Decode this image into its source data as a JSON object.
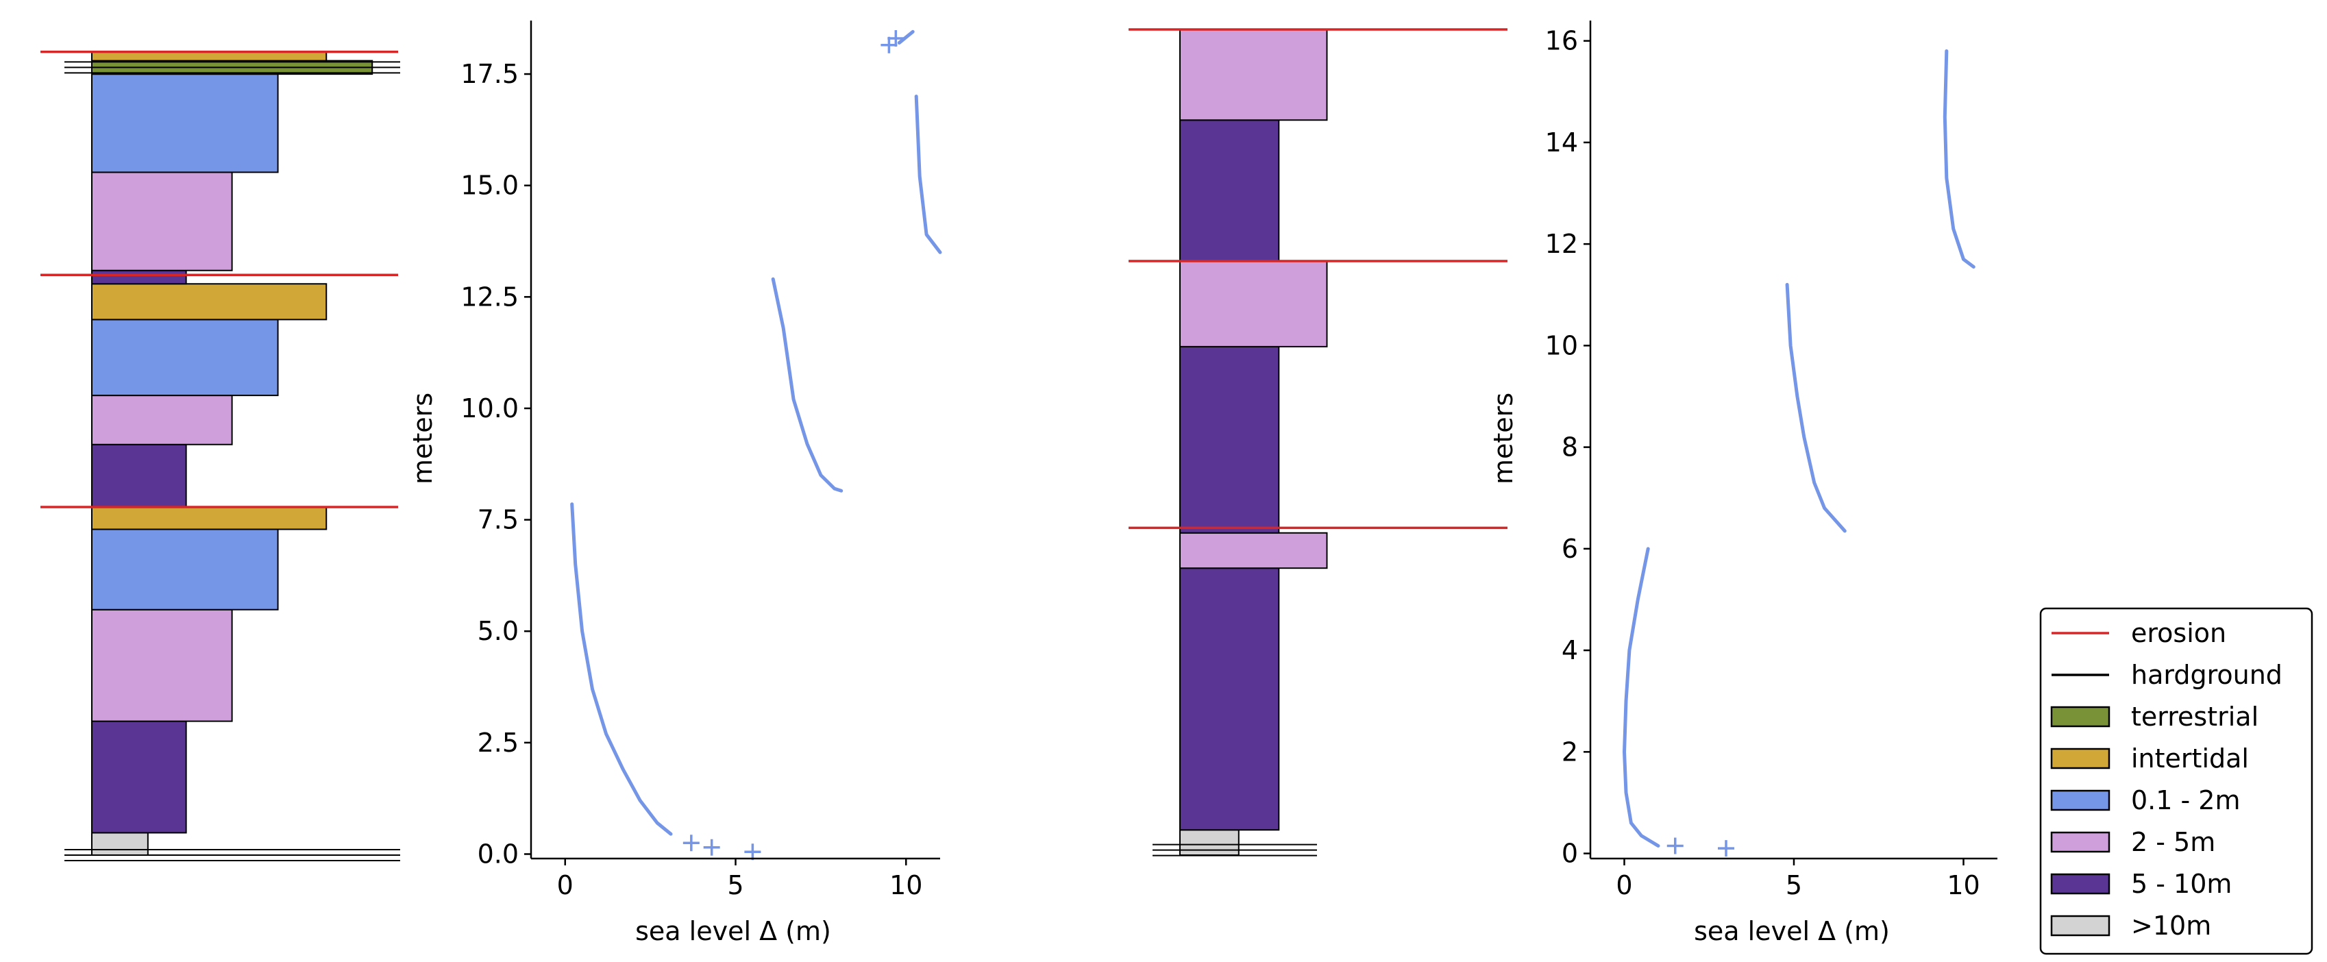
{
  "colors": {
    "erosion": "#d62728",
    "hardground": "#000000",
    "terrestrial": "#7a9237",
    "intertidal": "#d1a838",
    "0.1 - 2m": "#7595e6",
    "2 - 5m": "#cf9fdb",
    "5 - 10m": "#5b3594",
    ">10m": "#d3d3d3",
    "curve": "#7595e6"
  },
  "legend": {
    "items": [
      {
        "label": "erosion",
        "kind": "line",
        "color": "#d62728"
      },
      {
        "label": "hardground",
        "kind": "line",
        "color": "#000000"
      },
      {
        "label": "terrestrial",
        "kind": "patch",
        "color": "#7a9237"
      },
      {
        "label": "intertidal",
        "kind": "patch",
        "color": "#d1a838"
      },
      {
        "label": "0.1 - 2m",
        "kind": "patch",
        "color": "#7595e6"
      },
      {
        "label": "2 - 5m",
        "kind": "patch",
        "color": "#cf9fdb"
      },
      {
        "label": "5 - 10m",
        "kind": "patch",
        "color": "#5b3594"
      },
      {
        "label": ">10m",
        "kind": "patch",
        "color": "#d3d3d3"
      }
    ]
  },
  "chart_data": [
    {
      "type": "bar",
      "role": "stratigraphic-column-1",
      "units": "meters",
      "ylim": [
        0,
        18.5
      ],
      "beds": [
        {
          "bottom": 0.0,
          "top": 0.5,
          "facies": ">10m"
        },
        {
          "bottom": 0.5,
          "top": 3.0,
          "facies": "5 - 10m"
        },
        {
          "bottom": 3.0,
          "top": 5.5,
          "facies": "2 - 5m"
        },
        {
          "bottom": 5.5,
          "top": 7.3,
          "facies": "0.1 - 2m"
        },
        {
          "bottom": 7.3,
          "top": 7.8,
          "facies": "intertidal"
        },
        {
          "bottom": 7.8,
          "top": 9.2,
          "facies": "5 - 10m"
        },
        {
          "bottom": 9.2,
          "top": 10.3,
          "facies": "2 - 5m"
        },
        {
          "bottom": 10.3,
          "top": 12.0,
          "facies": "0.1 - 2m"
        },
        {
          "bottom": 12.0,
          "top": 12.8,
          "facies": "intertidal"
        },
        {
          "bottom": 12.8,
          "top": 13.1,
          "facies": "5 - 10m"
        },
        {
          "bottom": 13.1,
          "top": 15.3,
          "facies": "2 - 5m"
        },
        {
          "bottom": 15.3,
          "top": 17.5,
          "facies": "0.1 - 2m"
        },
        {
          "bottom": 17.5,
          "top": 17.8,
          "facies": "terrestrial"
        },
        {
          "bottom": 17.8,
          "top": 18.0,
          "facies": "intertidal"
        }
      ],
      "erosion_surfaces": [
        7.8,
        13.0,
        18.0
      ],
      "hardgrounds": [
        0.0,
        17.65
      ]
    },
    {
      "type": "line",
      "role": "sea-level-1",
      "xlabel": "sea level Δ (m)",
      "ylabel": "meters",
      "xlim": [
        -1,
        11
      ],
      "ylim": [
        -0.1,
        18.7
      ],
      "xticks": [
        0,
        5,
        10
      ],
      "yticks": [
        0.0,
        2.5,
        5.0,
        7.5,
        10.0,
        12.5,
        15.0,
        17.5
      ],
      "ytick_labels": [
        "0.0",
        "2.5",
        "5.0",
        "7.5",
        "10.0",
        "12.5",
        "15.0",
        "17.5"
      ],
      "series": [
        {
          "points": [
            [
              0.2,
              7.85
            ],
            [
              0.3,
              6.5
            ],
            [
              0.5,
              5.0
            ],
            [
              0.8,
              3.7
            ],
            [
              1.2,
              2.7
            ],
            [
              1.7,
              1.9
            ],
            [
              2.2,
              1.2
            ],
            [
              2.7,
              0.7
            ],
            [
              3.1,
              0.45
            ]
          ]
        },
        {
          "points": [
            [
              6.1,
              12.9
            ],
            [
              6.4,
              11.8
            ],
            [
              6.7,
              10.2
            ],
            [
              7.1,
              9.2
            ],
            [
              7.5,
              8.5
            ],
            [
              7.9,
              8.2
            ],
            [
              8.1,
              8.15
            ]
          ]
        },
        {
          "points": [
            [
              10.3,
              17.0
            ],
            [
              10.4,
              15.2
            ],
            [
              10.6,
              13.9
            ],
            [
              11.0,
              13.5
            ]
          ]
        },
        {
          "points": [
            [
              9.8,
              18.2
            ],
            [
              10.2,
              18.45
            ]
          ]
        }
      ],
      "markers": [
        [
          3.7,
          0.25
        ],
        [
          4.3,
          0.15
        ],
        [
          5.5,
          0.05
        ],
        [
          9.5,
          18.15
        ],
        [
          9.7,
          18.3
        ]
      ]
    },
    {
      "type": "bar",
      "role": "stratigraphic-column-2",
      "units": "meters",
      "ylim": [
        0,
        16.4
      ],
      "beds": [
        {
          "bottom": 0.0,
          "top": 0.5,
          "facies": ">10m"
        },
        {
          "bottom": 0.5,
          "top": 5.7,
          "facies": "5 - 10m"
        },
        {
          "bottom": 5.7,
          "top": 6.4,
          "facies": "2 - 5m"
        },
        {
          "bottom": 6.4,
          "top": 10.1,
          "facies": "5 - 10m"
        },
        {
          "bottom": 10.1,
          "top": 11.8,
          "facies": "2 - 5m"
        },
        {
          "bottom": 11.8,
          "top": 14.6,
          "facies": "5 - 10m"
        },
        {
          "bottom": 14.6,
          "top": 16.4,
          "facies": "2 - 5m"
        }
      ],
      "erosion_surfaces": [
        6.5,
        11.8,
        16.4
      ],
      "hardgrounds": [
        0.1
      ]
    },
    {
      "type": "line",
      "role": "sea-level-2",
      "xlabel": "sea level Δ (m)",
      "ylabel": "meters",
      "xlim": [
        -1,
        11
      ],
      "ylim": [
        -0.1,
        16.4
      ],
      "xticks": [
        0,
        5,
        10
      ],
      "yticks": [
        0,
        2,
        4,
        6,
        8,
        10,
        12,
        14,
        16
      ],
      "ytick_labels": [
        "0",
        "2",
        "4",
        "6",
        "8",
        "10",
        "12",
        "14",
        "16"
      ],
      "series": [
        {
          "points": [
            [
              0.7,
              6.0
            ],
            [
              0.4,
              5.0
            ],
            [
              0.15,
              4.0
            ],
            [
              0.05,
              3.0
            ],
            [
              0.0,
              2.0
            ],
            [
              0.05,
              1.2
            ],
            [
              0.2,
              0.6
            ],
            [
              0.5,
              0.35
            ],
            [
              1.0,
              0.15
            ]
          ]
        },
        {
          "points": [
            [
              4.8,
              11.2
            ],
            [
              4.9,
              10.0
            ],
            [
              5.1,
              9.0
            ],
            [
              5.3,
              8.2
            ],
            [
              5.6,
              7.3
            ],
            [
              5.9,
              6.8
            ],
            [
              6.5,
              6.35
            ]
          ]
        },
        {
          "points": [
            [
              9.5,
              15.8
            ],
            [
              9.45,
              14.5
            ],
            [
              9.5,
              13.3
            ],
            [
              9.7,
              12.3
            ],
            [
              10.0,
              11.7
            ],
            [
              10.3,
              11.55
            ]
          ]
        }
      ],
      "markers": [
        [
          1.5,
          0.15
        ],
        [
          3.0,
          0.1
        ]
      ]
    }
  ]
}
